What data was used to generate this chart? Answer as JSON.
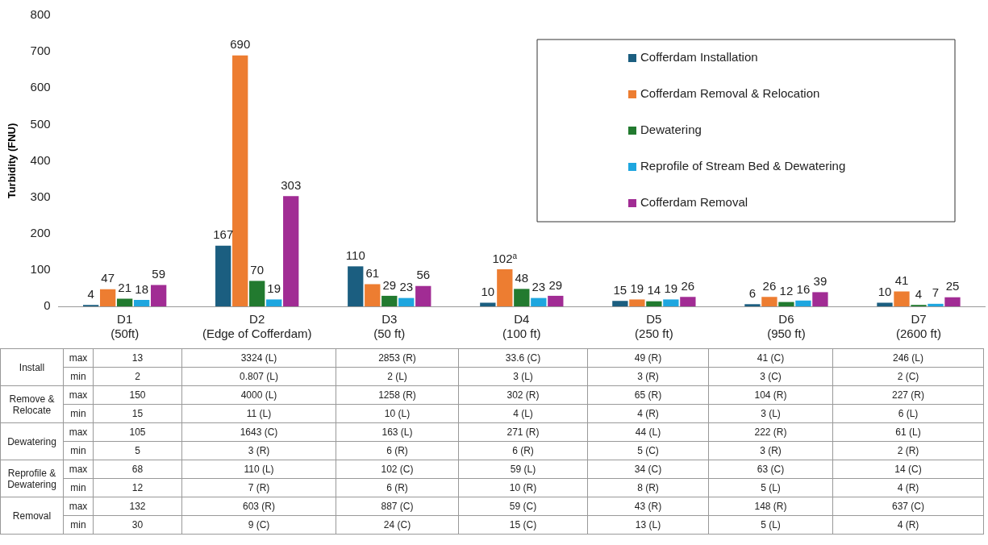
{
  "chart_data": [
    {
      "type": "bar",
      "ylabel": "Turbidity (FNU)",
      "categories": [
        "D1 (50ft)",
        "D2 (Edge of Cofferdam)",
        "D3 (50 ft)",
        "D4 (100 ft)",
        "D5 (250 ft)",
        "D6 (950 ft)",
        "D7 (2600 ft)"
      ],
      "ylim": [
        0,
        800
      ],
      "yticks": [
        0,
        100,
        200,
        300,
        400,
        500,
        600,
        700,
        800
      ],
      "legend": "top right",
      "series": [
        {
          "name": "Cofferdam Installation",
          "color": "#1b5e80",
          "values": [
            4,
            167,
            110,
            10,
            15,
            6,
            10
          ],
          "value_labels": [
            "4",
            "167",
            "110",
            "10",
            "15",
            "6",
            "10"
          ]
        },
        {
          "name": "Cofferdam Removal & Relocation",
          "color": "#ed7d31",
          "values": [
            47,
            690,
            61,
            102,
            19,
            26,
            41
          ],
          "value_labels": [
            "47",
            "690",
            "61",
            "102$^{a}$",
            "19",
            "26",
            "41"
          ]
        },
        {
          "name": "Dewatering",
          "color": "#227a2f",
          "values": [
            21,
            70,
            29,
            48,
            14,
            12,
            4
          ],
          "value_labels": [
            "21",
            "70",
            "29",
            "48",
            "14",
            "12",
            "4"
          ]
        },
        {
          "name": "Reprofile of Stream Bed & Dewatering",
          "color": "#1ea6df",
          "values": [
            18,
            19,
            23,
            23,
            19,
            16,
            7
          ],
          "value_labels": [
            "18",
            "19",
            "23",
            "23",
            "19",
            "16",
            "7"
          ]
        },
        {
          "name": "Cofferdam Removal",
          "color": "#a12c94",
          "values": [
            59,
            303,
            56,
            29,
            26,
            39,
            25
          ],
          "value_labels": [
            "59",
            "303",
            "56",
            "29",
            "26",
            "39",
            "25"
          ]
        }
      ]
    },
    {
      "type": "other",
      "annotations": [
        "Install",
        "Remove & Relocate",
        "Dewatering",
        "Reprofile & Dewatering",
        "Removal"
      ],
      "y_categories": [
        "max",
        "min",
        "max",
        "min",
        "max",
        "min",
        "max",
        "min",
        "max",
        "min"
      ],
      "cell_labels": [
        [
          "13",
          "3324 (L)",
          "2853 (R)",
          "33.6 (C)",
          "49 (R)",
          "41 (C)",
          "246 (L)"
        ],
        [
          "2",
          "0.807 (L)",
          "2 (L)",
          "3 (L)",
          "3 (R)",
          "3 (C)",
          "2 (C)"
        ],
        [
          "150",
          "4000 (L)",
          "1258 (R)",
          "302 (R)",
          "65 (R)",
          "104 (R)",
          "227 (R)"
        ],
        [
          "15",
          "11 (L)",
          "10 (L)",
          "4 (L)",
          "4 (R)",
          "3 (L)",
          "6 (L)"
        ],
        [
          "105",
          "1643 (C)",
          "163 (L)",
          "271 (R)",
          "44 (L)",
          "222 (R)",
          "61 (L)"
        ],
        [
          "5",
          "3 (R)",
          "6 (R)",
          "6 (R)",
          "5 (C)",
          "3 (R)",
          "2 (R)"
        ],
        [
          "68",
          "110 (L)",
          "102 (C)",
          "59 (L)",
          "34 (C)",
          "63 (C)",
          "14 (C)"
        ],
        [
          "12",
          "7 (R)",
          "6 (R)",
          "10 (R)",
          "8 (R)",
          "5 (L)",
          "4 (R)"
        ],
        [
          "132",
          "603 (R)",
          "887 (C)",
          "59 (C)",
          "43 (R)",
          "148 (R)",
          "637 (C)"
        ],
        [
          "30",
          "9 (C)",
          "24 (C)",
          "15 (C)",
          "13 (L)",
          "5 (L)",
          "4 (R)"
        ]
      ]
    }
  ]
}
